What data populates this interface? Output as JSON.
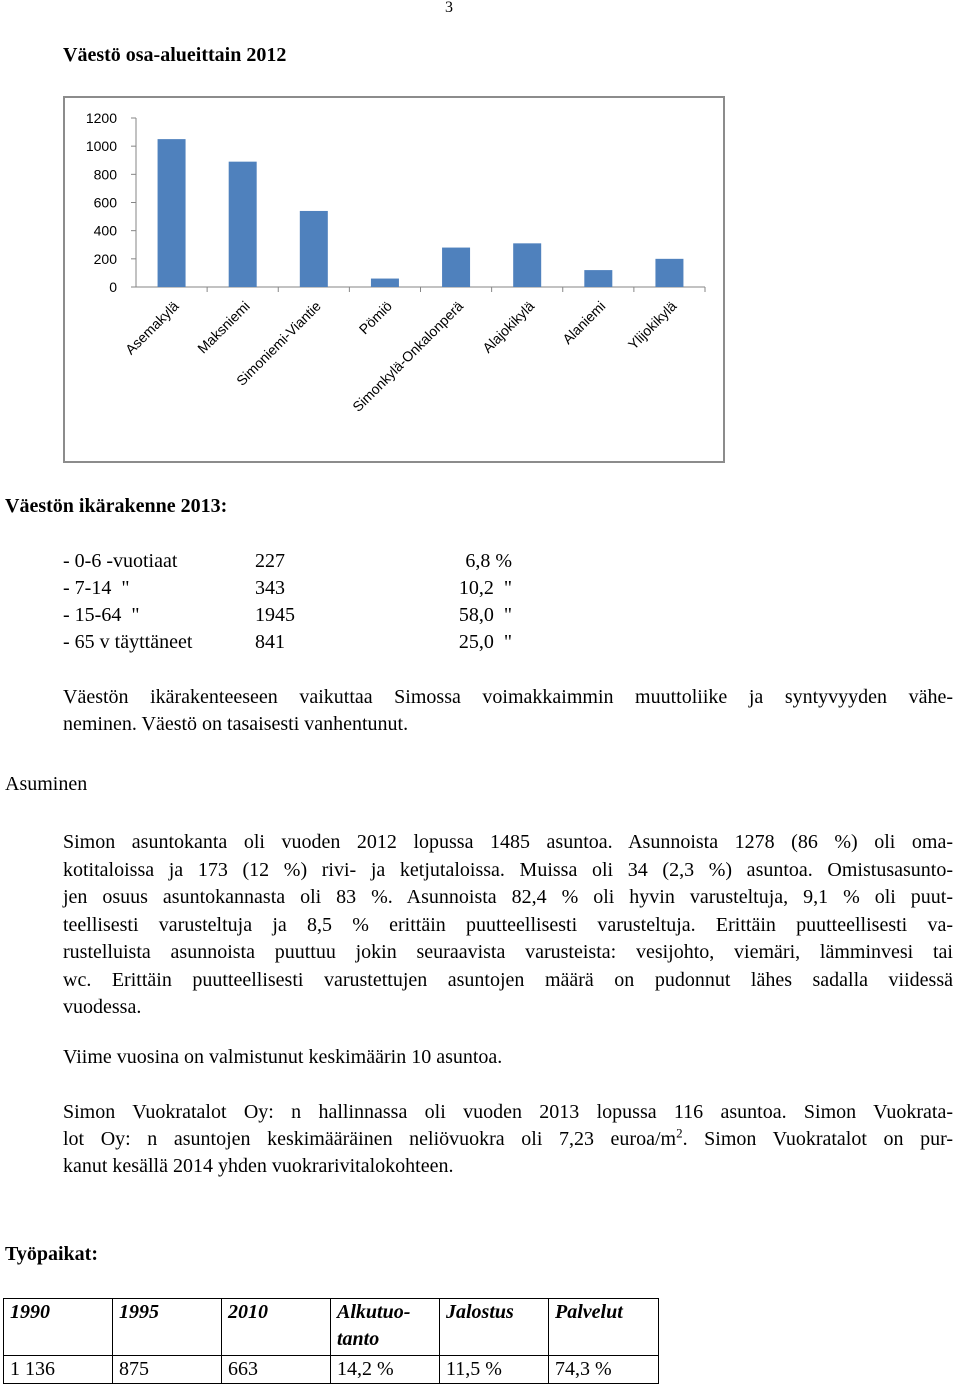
{
  "page_number": "3",
  "title": "Väestö osa-alueittain 2012",
  "chart_data": {
    "type": "bar",
    "categories": [
      "Asemakylä",
      "Maksniemi",
      "Simoniemi-Viantie",
      "Pömiö",
      "Simonkylä-Onkalonperä",
      "Alajokikylä",
      "Alaniemi",
      "Ylijokikylä"
    ],
    "values": [
      1050,
      890,
      540,
      60,
      280,
      310,
      120,
      200
    ],
    "color": "#4f81bd",
    "ylim": [
      0,
      1200
    ],
    "yticks": [
      0,
      200,
      400,
      600,
      800,
      1000,
      1200
    ],
    "grid": false
  },
  "age_section": {
    "heading": "Väestön ikärakenne 2013:",
    "rows": [
      [
        "- 0-6 -vuotiaat",
        "227",
        "6,8 %"
      ],
      [
        "- 7-14  \"",
        "343",
        "10,2  \""
      ],
      [
        "- 15-64  \"",
        "1945",
        "58,0  \""
      ],
      [
        "- 65 v täyttäneet",
        "841",
        "25,0  \""
      ]
    ],
    "paragraph": [
      "Väestön ikärakenteeseen vaikuttaa Simossa voimakkaimmin muuttoliike ja syntyvyyden vähe-",
      "neminen. Väestö on tasaisesti vanhentunut."
    ]
  },
  "housing_section": {
    "heading": "Asuminen",
    "paragraph_1": [
      "Simon asuntokanta oli vuoden 2012 lopussa 1485 asuntoa. Asunnoista 1278 (86 %) oli oma-",
      "kotitaloissa ja 173 (12 %) rivi- ja ketjutaloissa. Muissa oli 34 (2,3 %) asuntoa. Omistusasunto-",
      "jen osuus asuntokannasta oli 83 %. Asunnoista 82,4 % oli hyvin varusteltuja, 9,1 % oli puut-",
      "teellisesti varusteltuja ja 8,5 % erittäin puutteellisesti varusteltuja. Erittäin puutteellisesti va-",
      "rustelluista asunnoista puuttuu jokin seuraavista varusteista: vesijohto, viemäri, lämminvesi tai",
      "wc. Erittäin puutteellisesti varustettujen asuntojen määrä on pudonnut lähes sadalla viidessä",
      "vuodessa."
    ],
    "paragraph_2": "Viime vuosina on valmistunut keskimäärin 10 asuntoa.",
    "paragraph_3": {
      "line_1": "Simon Vuokratalot Oy: n hallinnassa oli vuoden 2013 lopussa 116 asuntoa. Simon Vuokrata-",
      "line_2_before": "lot Oy: n asuntojen keskimääräinen neliövuokra oli 7,23 euroa/m",
      "line_2_sup": "2",
      "line_2_after": ". Simon Vuokratalot on pur-",
      "line_3": "kanut kesällä 2014 yhden vuokrarivitalokohteen."
    }
  },
  "jobs_section": {
    "heading": "Työpaikat:",
    "table": {
      "header": [
        "1990",
        "1995",
        "2010",
        "Alkutuo-tanto",
        "Jalostus",
        "Palvelut"
      ],
      "rows": [
        [
          "1 136",
          "875",
          "663",
          "14,2 %",
          "11,5 %",
          "74,3 %"
        ]
      ]
    }
  }
}
